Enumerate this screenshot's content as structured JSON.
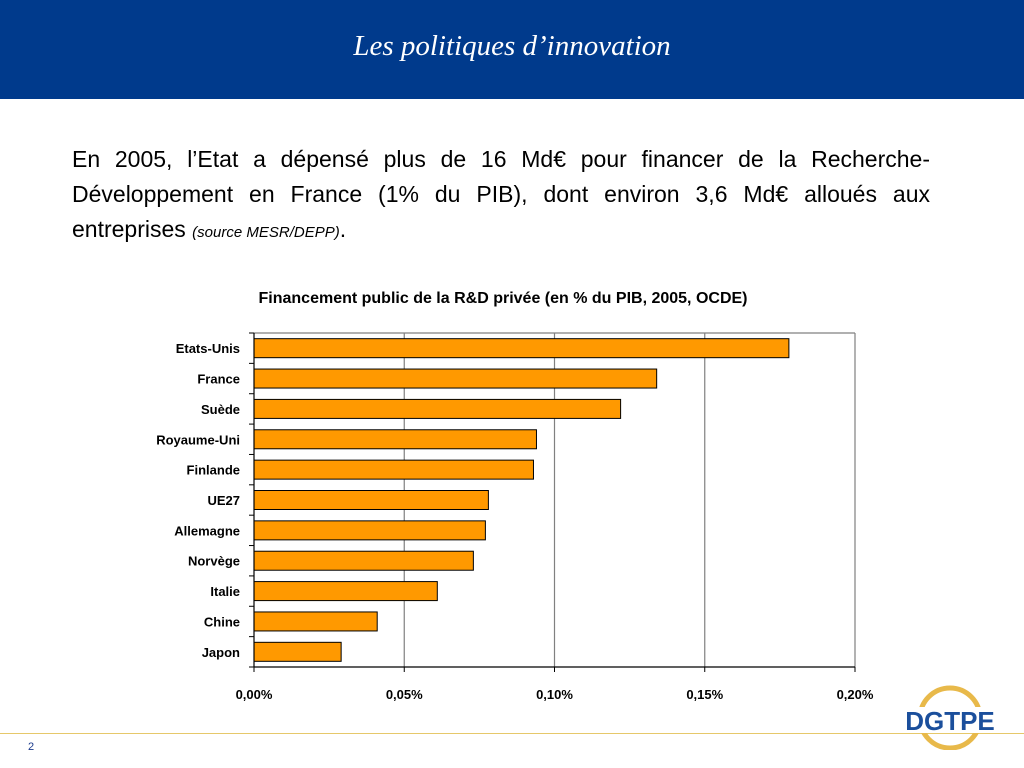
{
  "slide": {
    "title": "Les politiques d’innovation",
    "intro_main": "En 2005, l’Etat a dépensé plus de 16 Md€ pour financer de la Recherche-Développement en France (1% du PIB), dont environ 3,6 Md€ alloués aux entreprises ",
    "intro_source": "(source MESR/DEPP)",
    "intro_end": ".",
    "page_number": "2",
    "logo_text": "DGTPE"
  },
  "colors": {
    "header": "#003a8c",
    "bar_fill": "#ff9900",
    "bar_stroke": "#000000",
    "logo_blue": "#1b4f9c",
    "logo_gold": "#e8b94a"
  },
  "chart_data": {
    "type": "bar",
    "orientation": "horizontal",
    "title": "Financement public de la R&D privée (en % du PIB, 2005, OCDE)",
    "categories": [
      "Etats-Unis",
      "France",
      "Suède",
      "Royaume-Uni",
      "Finlande",
      "UE27",
      "Allemagne",
      "Norvège",
      "Italie",
      "Chine",
      "Japon"
    ],
    "values": [
      0.178,
      0.134,
      0.122,
      0.094,
      0.093,
      0.078,
      0.077,
      0.073,
      0.061,
      0.041,
      0.029
    ],
    "xlim": [
      0,
      0.2
    ],
    "xticks": [
      0,
      0.05,
      0.1,
      0.15,
      0.2
    ],
    "xtick_labels": [
      "0,00%",
      "0,05%",
      "0,10%",
      "0,15%",
      "0,20%"
    ],
    "grid": "vertical"
  }
}
